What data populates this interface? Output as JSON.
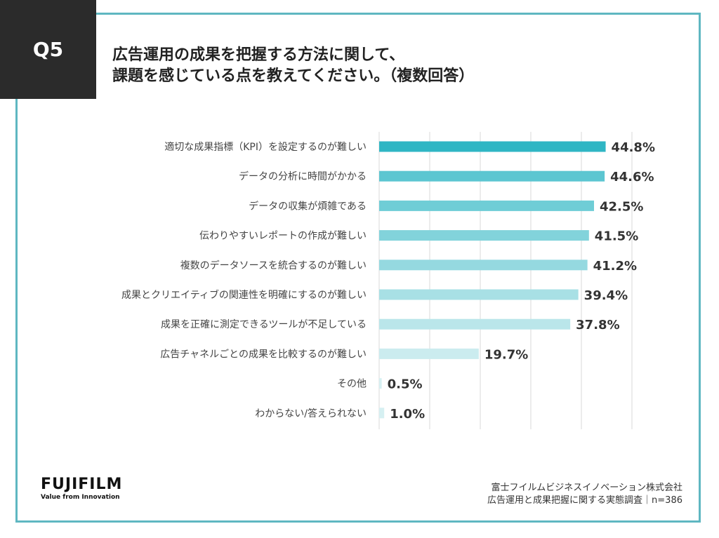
{
  "question": {
    "label": "Q5"
  },
  "title": {
    "line1": "広告運用の成果を把握する方法に関して、",
    "line2": "課題を感じている点を教えてください。（複数回答）"
  },
  "chart_data": {
    "type": "bar",
    "orientation": "horizontal",
    "categories": [
      "適切な成果指標（KPI）を設定するのが難しい",
      "データの分析に時間がかかる",
      "データの収集が煩雑である",
      "伝わりやすいレポートの作成が難しい",
      "複数のデータソースを統合するのが難しい",
      "成果とクリエイティブの関連性を明確にするのが難しい",
      "成果を正確に測定できるツールが不足している",
      "広告チャネルごとの成果を比較するのが難しい",
      "その他",
      "わからない/答えられない"
    ],
    "values": [
      44.8,
      44.6,
      42.5,
      41.5,
      41.2,
      39.4,
      37.8,
      19.7,
      0.5,
      1.0
    ],
    "value_labels": [
      "44.8%",
      "44.6%",
      "42.5%",
      "41.5%",
      "41.2%",
      "39.4%",
      "37.8%",
      "19.7%",
      "0.5%",
      "1.0%"
    ],
    "xlim": [
      0,
      50
    ],
    "grid": true,
    "bar_colors": [
      "#2fb6c4",
      "#5cc6d1",
      "#6fcdd6",
      "#82d3db",
      "#95d9e0",
      "#a8e0e5",
      "#bae6ea",
      "#cbecef",
      "#d6f0f2",
      "#d6f0f2"
    ]
  },
  "footer": {
    "logo_text": "FUJIFILM",
    "logo_tagline": "Value from Innovation",
    "source_line1": "富士フイルムビジネスイノベーション株式会社",
    "source_line2": "広告運用と成果把握に関する実態調査｜n=386"
  },
  "colors": {
    "frame": "#5fb7c1",
    "qbox": "#2b2b2b",
    "grid": "#d9d9d9"
  }
}
